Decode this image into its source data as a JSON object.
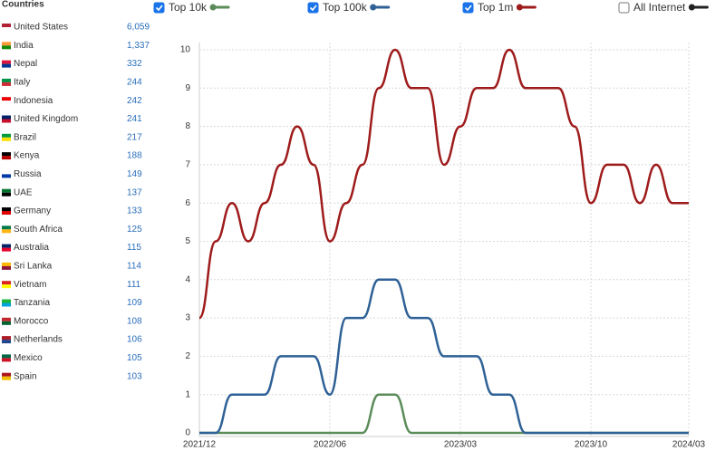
{
  "countries": {
    "title": "Countries",
    "names": [
      "United States",
      "India",
      "Nepal",
      "Italy",
      "Indonesia",
      "United Kingdom",
      "Brazil",
      "Kenya",
      "Russia",
      "UAE",
      "Germany",
      "South Africa",
      "Australia",
      "Sri Lanka",
      "Vietnam",
      "Tanzania",
      "Morocco",
      "Netherlands",
      "Mexico",
      "Spain"
    ],
    "values": [
      6059,
      1337,
      332,
      244,
      242,
      241,
      217,
      188,
      149,
      137,
      133,
      125,
      115,
      114,
      111,
      109,
      108,
      106,
      105,
      103
    ],
    "value_labels": [
      "6,059",
      "1,337",
      "332",
      "244",
      "242",
      "241",
      "217",
      "188",
      "149",
      "137",
      "133",
      "125",
      "115",
      "114",
      "111",
      "109",
      "108",
      "106",
      "105",
      "103"
    ]
  },
  "chart_data": {
    "type": "line",
    "categories": [
      "2021/12",
      null,
      null,
      null,
      null,
      null,
      null,
      null,
      "2022/06",
      null,
      null,
      null,
      null,
      null,
      null,
      null,
      "2023/03",
      null,
      null,
      null,
      null,
      null,
      null,
      null,
      "2023/10",
      null,
      null,
      null,
      null,
      null,
      "2024/03"
    ],
    "series": [
      {
        "name": "Top 10k",
        "color": "#5b8c5a",
        "checked": true,
        "values": [
          0,
          0,
          0,
          0,
          0,
          0,
          0,
          0,
          0,
          0,
          0,
          1,
          1,
          0,
          0,
          0,
          0,
          0,
          0,
          0,
          0,
          0,
          0,
          0,
          0,
          0,
          0,
          0,
          0,
          0,
          0
        ]
      },
      {
        "name": "Top 100k",
        "color": "#2f6196",
        "checked": true,
        "values": [
          0,
          0,
          1,
          1,
          1,
          2,
          2,
          2,
          1,
          3,
          3,
          4,
          4,
          3,
          3,
          2,
          2,
          2,
          1,
          1,
          0,
          0,
          0,
          0,
          0,
          0,
          0,
          0,
          0,
          0,
          0
        ]
      },
      {
        "name": "Top 1m",
        "color": "#9e1b1b",
        "checked": true,
        "values": [
          3,
          5,
          6,
          5,
          6,
          7,
          8,
          7,
          5,
          6,
          7,
          9,
          10,
          9,
          9,
          7,
          8,
          9,
          9,
          10,
          9,
          9,
          9,
          8,
          6,
          7,
          7,
          6,
          7,
          6,
          6
        ]
      },
      {
        "name": "All Internet",
        "color": "#222222",
        "checked": false
      }
    ],
    "ylim": [
      0,
      10
    ],
    "yticks": [
      0,
      1,
      2,
      3,
      4,
      5,
      6,
      7,
      8,
      9,
      10
    ],
    "grid": true
  }
}
